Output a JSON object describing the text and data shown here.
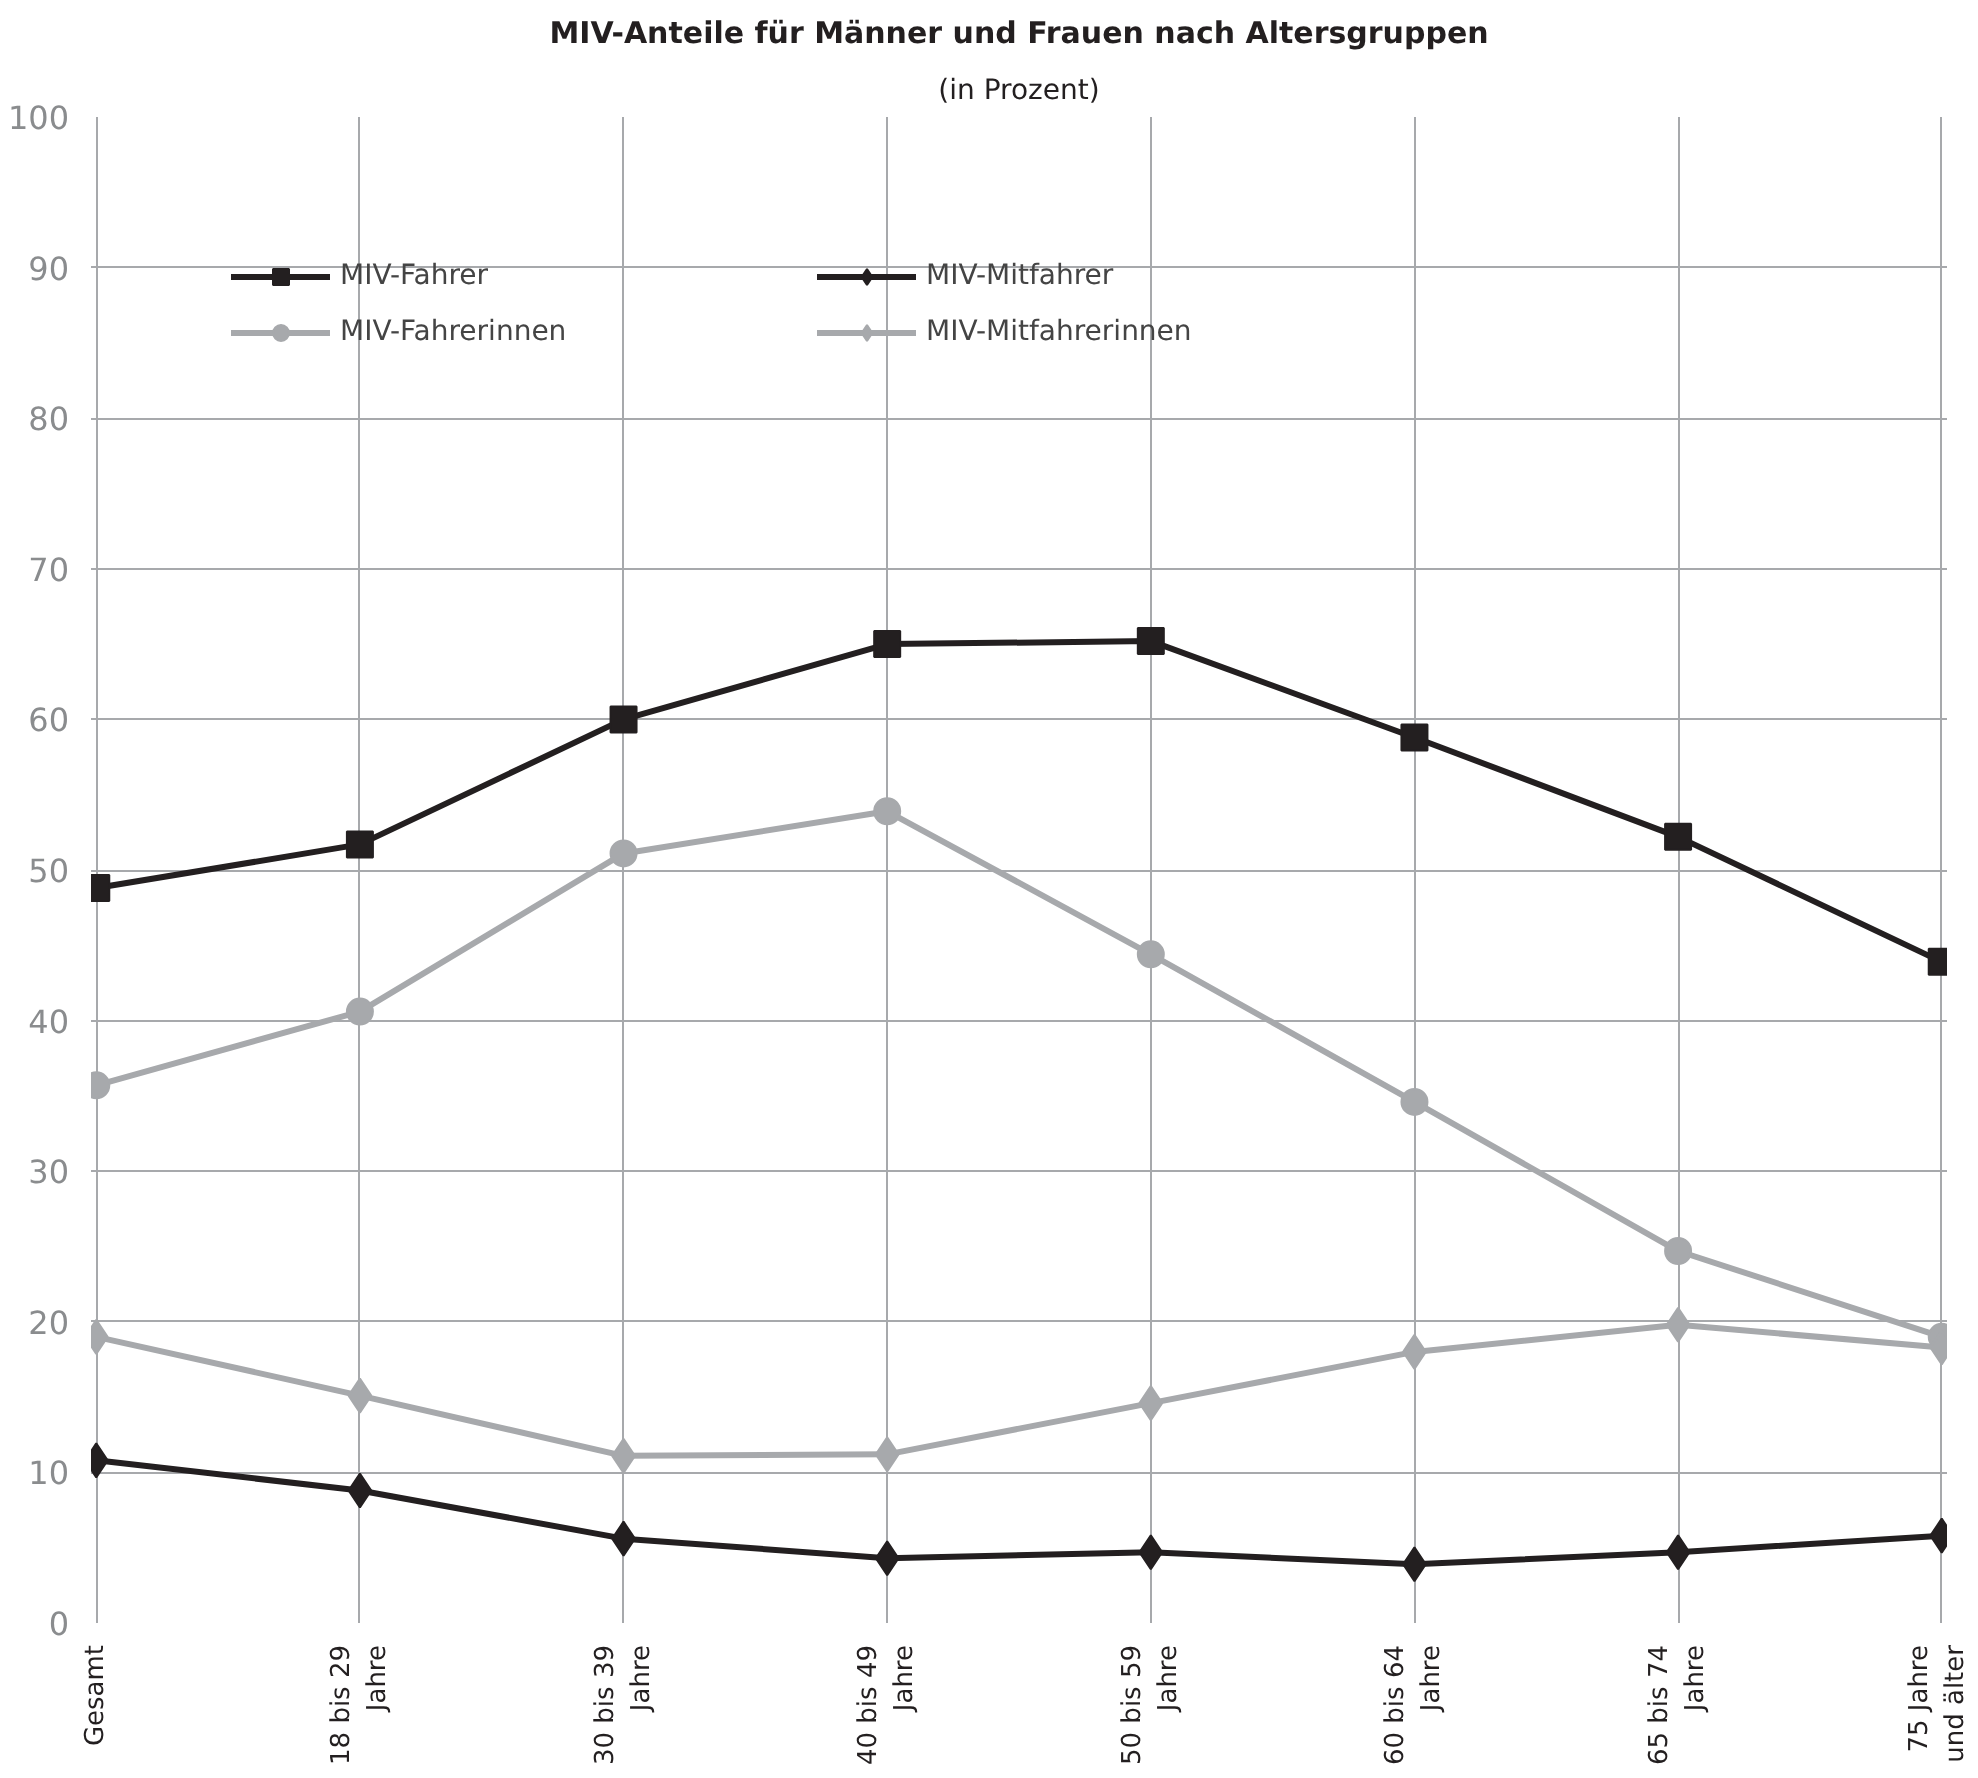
{
  "chart_data": {
    "type": "line",
    "title": "MIV-Anteile für Männer und Frauen nach Altersgruppen",
    "subtitle": "(in Prozent)",
    "categories": [
      "Gesamt",
      "18 bis 29\nJahre",
      "30 bis 39\nJahre",
      "40 bis 49\nJahre",
      "50 bis 59\nJahre",
      "60 bis 64\nJahre",
      "65 bis 74\nJahre",
      "75 Jahre\nund älter"
    ],
    "series": [
      {
        "name": "MIV-Fahrer",
        "color": "#231f20",
        "marker": "square",
        "values": [
          48.8,
          51.7,
          60.0,
          65.0,
          65.2,
          58.8,
          52.2,
          43.9
        ]
      },
      {
        "name": "MIV-Fahrerinnen",
        "color": "#a7a9ac",
        "marker": "circle",
        "values": [
          35.7,
          40.6,
          51.1,
          53.9,
          44.4,
          34.6,
          24.7,
          19.0
        ]
      },
      {
        "name": "MIV-Mitfahrer",
        "color": "#231f20",
        "marker": "diamond",
        "values": [
          10.8,
          8.8,
          5.6,
          4.3,
          4.7,
          3.9,
          4.7,
          5.8
        ]
      },
      {
        "name": "MIV-Mitfahrerinnen",
        "color": "#a7a9ac",
        "marker": "diamond",
        "values": [
          19.0,
          15.1,
          11.1,
          11.2,
          14.6,
          18.0,
          19.8,
          18.3
        ]
      }
    ],
    "ylim": [
      0,
      100
    ],
    "yticks": [
      0,
      10,
      20,
      30,
      40,
      50,
      60,
      70,
      80,
      90,
      100
    ],
    "grid": true,
    "legend": "top left",
    "line_style": "solid"
  }
}
